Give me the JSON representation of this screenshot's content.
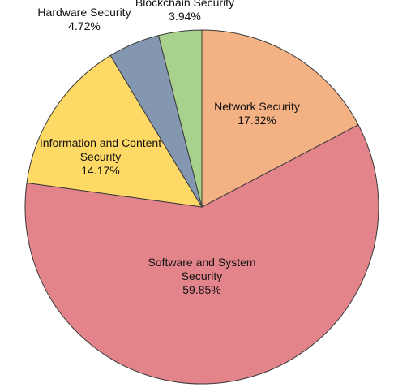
{
  "chart_data": {
    "type": "pie",
    "title": "",
    "start_angle_deg": 0,
    "direction": "clockwise",
    "slices": [
      {
        "label_lines": [
          "Network Security"
        ],
        "value_label": "17.32%",
        "value": 17.32,
        "color": "#f4b183"
      },
      {
        "label_lines": [
          "Software and System",
          "Security"
        ],
        "value_label": "59.85%",
        "value": 59.85,
        "color": "#e3838a"
      },
      {
        "label_lines": [
          "Information and Content",
          "Security"
        ],
        "value_label": "14.17%",
        "value": 14.17,
        "color": "#ffd966"
      },
      {
        "label_lines": [
          "Hardware Security"
        ],
        "value_label": "4.72%",
        "value": 4.72,
        "color": "#8497b0"
      },
      {
        "label_lines": [
          "Blockchain Security"
        ],
        "value_label": "3.94%",
        "value": 3.94,
        "color": "#a9d18e"
      }
    ]
  }
}
